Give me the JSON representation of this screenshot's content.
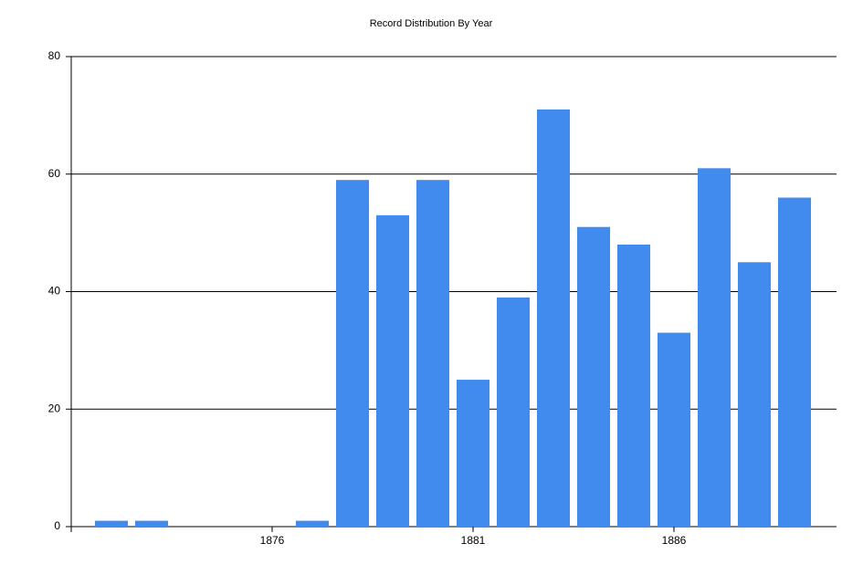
{
  "chart_data": {
    "type": "bar",
    "title": "Record Distribution By Year",
    "x": [
      1872,
      1873,
      1877,
      1878,
      1879,
      1880,
      1881,
      1882,
      1883,
      1884,
      1885,
      1886,
      1887,
      1888,
      1889
    ],
    "values": [
      1,
      1,
      1,
      59,
      53,
      59,
      25,
      39,
      71,
      51,
      48,
      33,
      61,
      45,
      56
    ],
    "color": "#428bee",
    "xlim": [
      1871,
      1890
    ],
    "xticks": [
      1876,
      1881,
      1886
    ],
    "ylim": [
      0,
      80
    ],
    "yticks": [
      0,
      20,
      40,
      60,
      80
    ],
    "grid": true
  }
}
